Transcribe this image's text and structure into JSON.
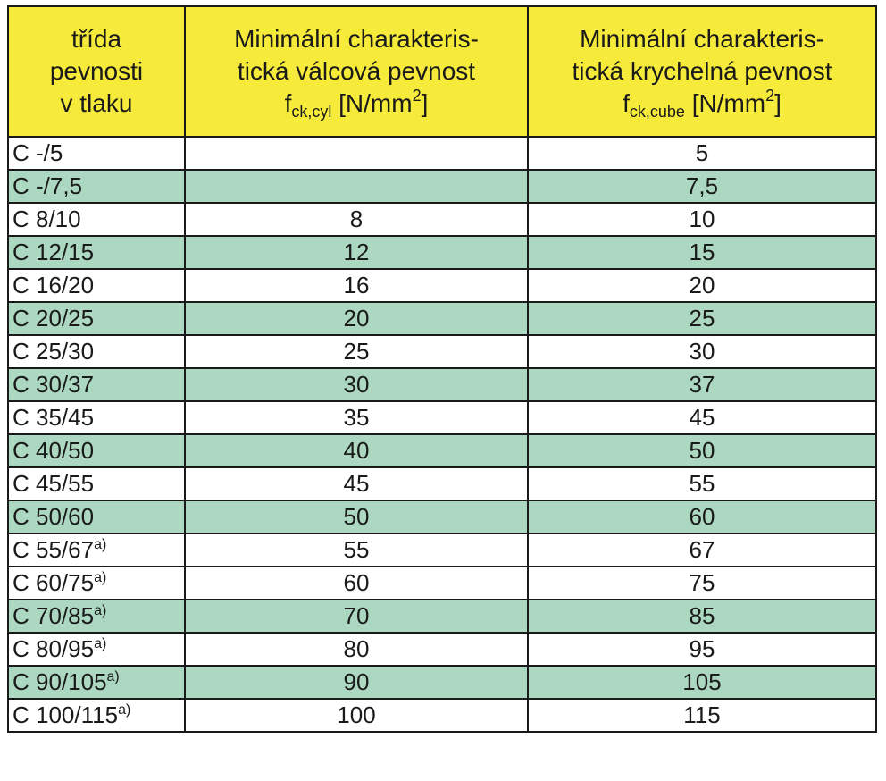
{
  "colors": {
    "header_bg": "#f6ea3a",
    "row_shaded": "#acd8c2",
    "row_plain": "#ffffff",
    "border": "#1a1a1a"
  },
  "header": {
    "col1": [
      "třída",
      "pevnosti",
      "v tlaku"
    ],
    "col2": {
      "line1": "Minimální charakteris-",
      "line2": "tická válcová pevnost",
      "symbol": "f",
      "subscript": "ck,cyl",
      "unit_before": "[N/mm",
      "unit_sup": "2",
      "unit_after": "]"
    },
    "col3": {
      "line1": "Minimální charakteris-",
      "line2": "tická krychelná pevnost",
      "symbol": "f",
      "subscript": "ck,cube",
      "unit_before": "[N/mm",
      "unit_sup": "2",
      "unit_after": "]"
    }
  },
  "rows": [
    {
      "cls": "C -/5",
      "note": "",
      "cyl": "",
      "cube": "5"
    },
    {
      "cls": "C -/7,5",
      "note": "",
      "cyl": "",
      "cube": "7,5"
    },
    {
      "cls": "C 8/10",
      "note": "",
      "cyl": "8",
      "cube": "10"
    },
    {
      "cls": "C 12/15",
      "note": "",
      "cyl": "12",
      "cube": "15"
    },
    {
      "cls": "C 16/20",
      "note": "",
      "cyl": "16",
      "cube": "20"
    },
    {
      "cls": "C 20/25",
      "note": "",
      "cyl": "20",
      "cube": "25"
    },
    {
      "cls": "C 25/30",
      "note": "",
      "cyl": "25",
      "cube": "30"
    },
    {
      "cls": "C 30/37",
      "note": "",
      "cyl": "30",
      "cube": "37"
    },
    {
      "cls": "C 35/45",
      "note": "",
      "cyl": "35",
      "cube": "45"
    },
    {
      "cls": "C 40/50",
      "note": "",
      "cyl": "40",
      "cube": "50"
    },
    {
      "cls": "C 45/55",
      "note": "",
      "cyl": "45",
      "cube": "55"
    },
    {
      "cls": "C 50/60",
      "note": "",
      "cyl": "50",
      "cube": "60"
    },
    {
      "cls": "C 55/67",
      "note": "a)",
      "cyl": "55",
      "cube": "67"
    },
    {
      "cls": "C 60/75",
      "note": "a)",
      "cyl": "60",
      "cube": "75"
    },
    {
      "cls": "C 70/85",
      "note": "a)",
      "cyl": "70",
      "cube": "85"
    },
    {
      "cls": "C 80/95",
      "note": "a)",
      "cyl": "80",
      "cube": "95"
    },
    {
      "cls": "C 90/105",
      "note": "a)",
      "cyl": "90",
      "cube": "105"
    },
    {
      "cls": "C 100/115",
      "note": "a)",
      "cyl": "100",
      "cube": "115"
    }
  ],
  "shading": [
    "plain",
    "shaded",
    "plain",
    "shaded",
    "plain",
    "shaded",
    "plain",
    "shaded",
    "plain",
    "shaded",
    "plain",
    "shaded",
    "plain",
    "plain",
    "shaded",
    "plain",
    "shaded",
    "plain"
  ]
}
